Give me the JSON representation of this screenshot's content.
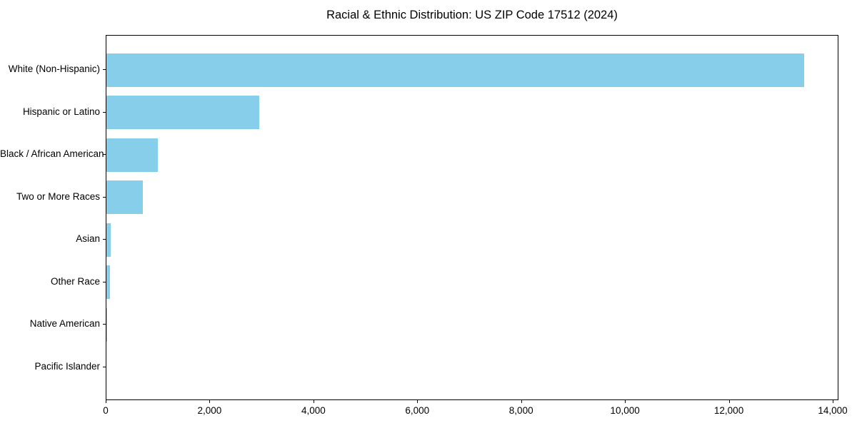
{
  "chart_data": {
    "type": "bar",
    "orientation": "horizontal",
    "title": "Racial & Ethnic Distribution: US ZIP Code 17512 (2024)",
    "categories": [
      "White (Non-Hispanic)",
      "Hispanic or Latino",
      "Black / African American",
      "Two or More Races",
      "Asian",
      "Other Race",
      "Native American",
      "Pacific Islander"
    ],
    "values": [
      13440,
      2940,
      990,
      700,
      80,
      70,
      10,
      0
    ],
    "xlabel": "",
    "ylabel": "",
    "xlim": [
      0,
      14000
    ],
    "xticks": [
      0,
      2000,
      4000,
      6000,
      8000,
      10000,
      12000,
      14000
    ],
    "xtick_labels": [
      "0",
      "2,000",
      "4,000",
      "6,000",
      "8,000",
      "10,000",
      "12,000",
      "14,000"
    ],
    "grid": false,
    "legend": null,
    "colors": {
      "bar": "#87CEEB",
      "spine": "#000000",
      "text": "#000000",
      "background": "#ffffff"
    }
  }
}
